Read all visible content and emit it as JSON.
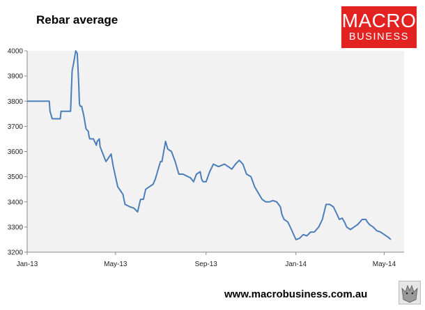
{
  "chart_data": {
    "type": "line",
    "title": "Rebar average",
    "xlabel": "",
    "ylabel": "",
    "ylim": [
      3200,
      4000
    ],
    "yticks": [
      3200,
      3300,
      3400,
      3500,
      3600,
      3700,
      3800,
      3900,
      4000
    ],
    "xticks": [
      "Jan-13",
      "May-13",
      "Sep-13",
      "Jan-14",
      "May-14"
    ],
    "grid": false,
    "legend": "none",
    "line_color": "#4a7ebb",
    "plot_background": "#f2f2f2",
    "series": [
      {
        "name": "",
        "x": [
          "2013-01-01",
          "2013-01-31",
          "2013-02-01",
          "2013-02-04",
          "2013-02-15",
          "2013-02-16",
          "2013-03-01",
          "2013-03-03",
          "2013-03-05",
          "2013-03-08",
          "2013-03-10",
          "2013-03-12",
          "2013-03-13",
          "2013-03-14",
          "2013-03-16",
          "2013-03-19",
          "2013-03-22",
          "2013-03-25",
          "2013-03-26",
          "2013-03-27",
          "2013-04-01",
          "2013-04-05",
          "2013-04-06",
          "2013-04-09",
          "2013-04-10",
          "2013-04-16",
          "2013-04-18",
          "2013-04-25",
          "2013-04-28",
          "2013-05-04",
          "2013-05-11",
          "2013-05-14",
          "2013-05-21",
          "2013-05-26",
          "2013-05-31",
          "2013-06-04",
          "2013-06-08",
          "2013-06-11",
          "2013-06-16",
          "2013-06-21",
          "2013-06-24",
          "2013-07-01",
          "2013-07-03",
          "2013-07-08",
          "2013-07-11",
          "2013-07-16",
          "2013-07-21",
          "2013-07-26",
          "2013-08-01",
          "2013-08-04",
          "2013-08-11",
          "2013-08-15",
          "2013-08-19",
          "2013-08-24",
          "2013-08-26",
          "2013-08-28",
          "2013-09-01",
          "2013-09-06",
          "2013-09-11",
          "2013-09-18",
          "2013-09-26",
          "2013-10-01",
          "2013-10-06",
          "2013-10-11",
          "2013-10-16",
          "2013-10-21",
          "2013-10-26",
          "2013-11-01",
          "2013-11-06",
          "2013-11-11",
          "2013-11-16",
          "2013-11-21",
          "2013-11-26",
          "2013-12-01",
          "2013-12-06",
          "2013-12-11",
          "2013-12-13",
          "2013-12-16",
          "2013-12-21",
          "2013-12-26",
          "2014-01-01",
          "2014-01-06",
          "2014-01-11",
          "2014-01-16",
          "2014-01-21",
          "2014-01-26",
          "2014-02-01",
          "2014-02-06",
          "2014-02-11",
          "2014-02-16",
          "2014-02-21",
          "2014-02-26",
          "2014-03-01",
          "2014-03-05",
          "2014-03-08",
          "2014-03-11",
          "2014-03-16",
          "2014-03-21",
          "2014-03-26",
          "2014-04-01",
          "2014-04-06",
          "2014-04-08",
          "2014-04-11",
          "2014-04-16",
          "2014-04-21",
          "2014-04-26",
          "2014-05-01",
          "2014-05-06",
          "2014-05-10"
        ],
        "values": [
          3800,
          3800,
          3760,
          3730,
          3730,
          3760,
          3760,
          3920,
          3950,
          4000,
          3990,
          3870,
          3790,
          3780,
          3780,
          3740,
          3690,
          3680,
          3660,
          3650,
          3650,
          3625,
          3640,
          3650,
          3620,
          3575,
          3560,
          3590,
          3540,
          3460,
          3430,
          3390,
          3380,
          3375,
          3360,
          3410,
          3410,
          3450,
          3460,
          3470,
          3490,
          3560,
          3560,
          3640,
          3610,
          3600,
          3560,
          3510,
          3510,
          3505,
          3495,
          3480,
          3510,
          3520,
          3490,
          3480,
          3480,
          3520,
          3550,
          3540,
          3550,
          3540,
          3530,
          3550,
          3565,
          3550,
          3510,
          3500,
          3460,
          3435,
          3410,
          3400,
          3400,
          3405,
          3400,
          3380,
          3350,
          3330,
          3320,
          3290,
          3250,
          3255,
          3270,
          3265,
          3280,
          3280,
          3300,
          3330,
          3390,
          3390,
          3380,
          3350,
          3330,
          3335,
          3320,
          3300,
          3290,
          3300,
          3310,
          3330,
          3330,
          3320,
          3310,
          3300,
          3285,
          3280,
          3270,
          3260,
          3250
        ]
      }
    ]
  },
  "logo": {
    "line1": "MACRO",
    "line2": "BUSINESS"
  },
  "footer": {
    "url": "www.macrobusiness.com.au"
  },
  "badge": {
    "icon": "wolf-icon"
  }
}
